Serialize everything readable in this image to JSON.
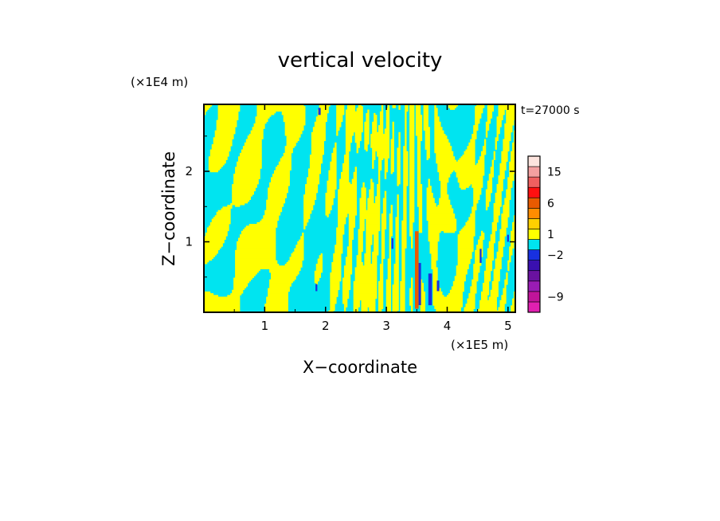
{
  "chart_data": {
    "type": "heatmap",
    "title": "vertical velocity",
    "xlabel": "X−coordinate",
    "ylabel": "Z−coordinate",
    "x_unit": "(×1E5 m)",
    "y_unit": "(×1E4 m)",
    "time_label": "t=27000 s",
    "xlim": [
      0,
      5.12
    ],
    "ylim": [
      0,
      2.95
    ],
    "x_ticks": [
      1,
      2,
      3,
      4,
      5
    ],
    "x_tick_labels": [
      "1",
      "2",
      "3",
      "4",
      "5"
    ],
    "y_ticks": [
      1,
      2
    ],
    "y_tick_labels": [
      "1",
      "2"
    ],
    "colorbar": {
      "levels": [
        {
          "color": "#e020b0",
          "label": ""
        },
        {
          "color": "#c0149a",
          "label": "−9"
        },
        {
          "color": "#9a1cb4",
          "label": ""
        },
        {
          "color": "#6a12a0",
          "label": ""
        },
        {
          "color": "#3a10b0",
          "label": ""
        },
        {
          "color": "#1830e0",
          "label": "−2"
        },
        {
          "color": "#00e4f0",
          "label": ""
        },
        {
          "color": "#ffff00",
          "label": "1"
        },
        {
          "color": "#ffd000",
          "label": ""
        },
        {
          "color": "#ff8c00",
          "label": ""
        },
        {
          "color": "#e85a00",
          "label": "6"
        },
        {
          "color": "#ff1010",
          "label": ""
        },
        {
          "color": "#f06060",
          "label": ""
        },
        {
          "color": "#f4a0a0",
          "label": "15"
        },
        {
          "color": "#fde4de",
          "label": ""
        }
      ]
    },
    "field_colors": {
      "negative": "#00e4f0",
      "positive": "#ffff00",
      "strong_negative": "#1830e0",
      "strong_positive": "#e85a00"
    }
  }
}
